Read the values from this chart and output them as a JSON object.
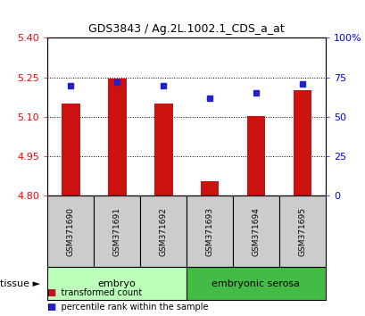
{
  "title": "GDS3843 / Ag.2L.1002.1_CDS_a_at",
  "samples": [
    "GSM371690",
    "GSM371691",
    "GSM371692",
    "GSM371693",
    "GSM371694",
    "GSM371695"
  ],
  "red_values": [
    5.15,
    5.245,
    5.15,
    4.855,
    5.105,
    5.2
  ],
  "blue_percentiles": [
    70,
    72,
    70,
    62,
    65,
    71
  ],
  "ylim_left": [
    4.8,
    5.4
  ],
  "ylim_right": [
    0,
    100
  ],
  "yticks_left": [
    4.8,
    4.95,
    5.1,
    5.25,
    5.4
  ],
  "yticks_right": [
    0,
    25,
    50,
    75,
    100
  ],
  "ytick_labels_right": [
    "0",
    "25",
    "50",
    "75",
    "100%"
  ],
  "bar_color": "#cc1111",
  "square_color": "#2222cc",
  "tissue_groups": [
    {
      "label": "embryo",
      "start": 0,
      "end": 3,
      "color": "#bbffbb"
    },
    {
      "label": "embryonic serosa",
      "start": 3,
      "end": 6,
      "color": "#44bb44"
    }
  ],
  "tissue_label": "tissue",
  "legend_red": "transformed count",
  "legend_blue": "percentile rank within the sample",
  "sample_box_color": "#cccccc",
  "bar_bottom": 4.8,
  "base_fontsize": 8,
  "grid_dotted_at": [
    4.95,
    5.1,
    5.25
  ]
}
